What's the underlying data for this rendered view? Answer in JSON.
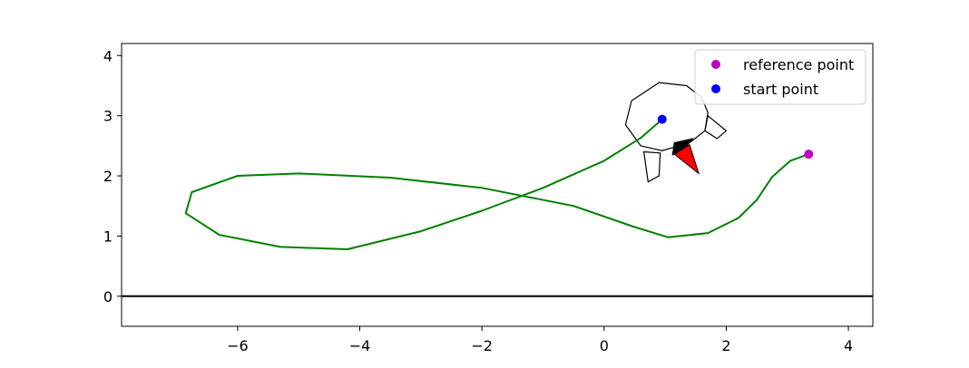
{
  "chart_data": {
    "type": "line",
    "xlim": [
      -7.9,
      4.4
    ],
    "ylim": [
      -0.5,
      4.2
    ],
    "xticks": [
      -6,
      -4,
      -2,
      0,
      2,
      4
    ],
    "xtick_labels": [
      "−6",
      "−4",
      "−2",
      "0",
      "2",
      "4"
    ],
    "yticks": [
      0,
      1,
      2,
      3,
      4
    ],
    "ytick_labels": [
      "0",
      "1",
      "2",
      "3",
      "4"
    ],
    "grid": false,
    "legend_position": "top-right",
    "ground_line": {
      "y": 0,
      "color": "#000000"
    },
    "series": [
      {
        "style": "line",
        "color": "#008000",
        "x": [
          0.95,
          0.6,
          0.0,
          -1.0,
          -2.0,
          -3.0,
          -4.2,
          -5.3,
          -6.3,
          -6.85,
          -6.75,
          -6.0,
          -5.0,
          -3.5,
          -2.0,
          -0.5,
          0.5,
          1.05,
          1.7,
          2.2,
          2.5,
          2.75,
          3.05,
          3.32
        ],
        "y": [
          2.94,
          2.63,
          2.25,
          1.8,
          1.42,
          1.08,
          0.78,
          0.82,
          1.02,
          1.38,
          1.73,
          2.0,
          2.04,
          1.97,
          1.8,
          1.5,
          1.15,
          0.98,
          1.05,
          1.3,
          1.6,
          1.98,
          2.25,
          2.35
        ]
      },
      {
        "name": "reference point",
        "style": "marker",
        "color": "#bf00bf",
        "x": [
          3.35
        ],
        "y": [
          2.36
        ]
      },
      {
        "name": "start point",
        "style": "marker",
        "color": "#0000ff",
        "x": [
          0.95
        ],
        "y": [
          2.94
        ]
      }
    ],
    "robot_outline": {
      "body": [
        [
          0.9,
          3.55
        ],
        [
          1.35,
          3.5
        ],
        [
          1.6,
          3.3
        ],
        [
          1.7,
          3.05
        ],
        [
          1.65,
          2.75
        ],
        [
          1.4,
          2.55
        ],
        [
          0.95,
          2.42
        ],
        [
          0.6,
          2.5
        ],
        [
          0.35,
          2.85
        ],
        [
          0.45,
          3.25
        ]
      ],
      "arm_right": [
        [
          1.7,
          3.0
        ],
        [
          2.0,
          2.75
        ],
        [
          1.85,
          2.62
        ],
        [
          1.65,
          2.75
        ]
      ],
      "arm_left": [
        [
          0.65,
          2.4
        ],
        [
          0.92,
          2.38
        ],
        [
          0.9,
          2.0
        ],
        [
          0.72,
          1.9
        ]
      ],
      "tool_dark": [
        [
          1.15,
          2.55
        ],
        [
          1.45,
          2.62
        ],
        [
          1.35,
          2.5
        ],
        [
          1.12,
          2.35
        ]
      ],
      "tool_red": [
        [
          1.15,
          2.36
        ],
        [
          1.4,
          2.52
        ],
        [
          1.55,
          2.04
        ]
      ]
    },
    "colors": {
      "axes": "#000000",
      "robot_outline": "#000000",
      "tool_dark": "#000000",
      "tool_red": "#ff0000"
    }
  },
  "legend": {
    "items": [
      {
        "label": "reference point",
        "color": "#bf00bf"
      },
      {
        "label": "start point",
        "color": "#0000ff"
      }
    ]
  }
}
